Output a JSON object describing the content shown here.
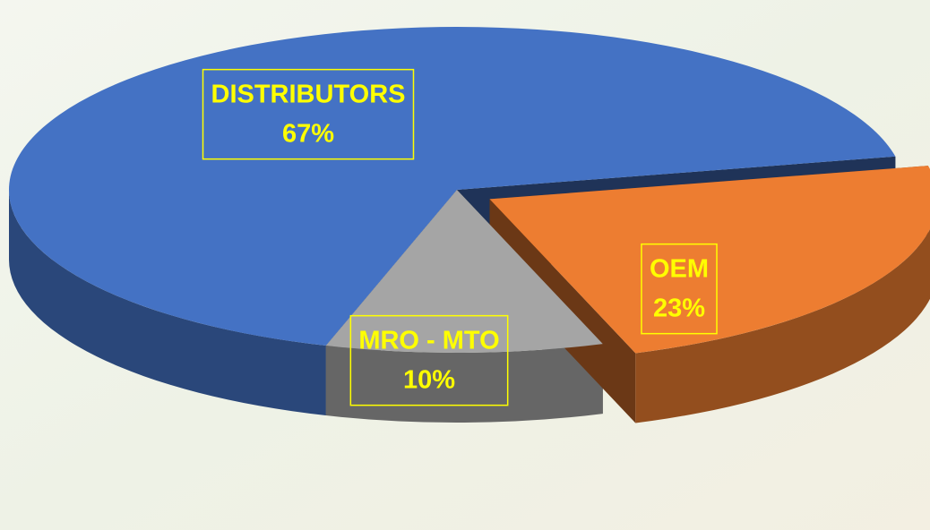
{
  "chart_data": {
    "type": "pie",
    "three_d": true,
    "categories": [
      "DISTRIBUTORS",
      "OEM",
      "MRO - MTO"
    ],
    "values": [
      67,
      23,
      10
    ],
    "value_labels": [
      "67%",
      "23%",
      "10%"
    ],
    "colors": [
      "#4472c4",
      "#ed7d31",
      "#a5a5a5"
    ],
    "exploded": [
      false,
      true,
      false
    ],
    "label_color": "#ffff00"
  }
}
